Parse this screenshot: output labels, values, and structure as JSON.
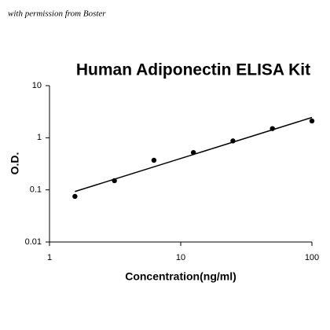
{
  "watermark": "with permission from Boster",
  "chart_data": {
    "type": "scatter",
    "title": "Human Adiponectin ELISA Kit",
    "x_label": "Concentration(ng/ml)",
    "y_label": "O.D.",
    "x": [
      1.5625,
      3.125,
      6.25,
      12.5,
      25,
      50,
      100
    ],
    "values": [
      0.075,
      0.15,
      0.37,
      0.52,
      0.87,
      1.5,
      2.1
    ],
    "color": "#000000",
    "fit": {
      "x": [
        1.5625,
        100
      ],
      "values": [
        0.093,
        2.45
      ]
    },
    "xlim": [
      1,
      100
    ],
    "ylim": [
      0.01,
      10
    ],
    "xticks": [
      1,
      10,
      100
    ],
    "yticks": [
      0.01,
      0.1,
      1,
      10
    ],
    "xscale": "log",
    "yscale": "log"
  }
}
